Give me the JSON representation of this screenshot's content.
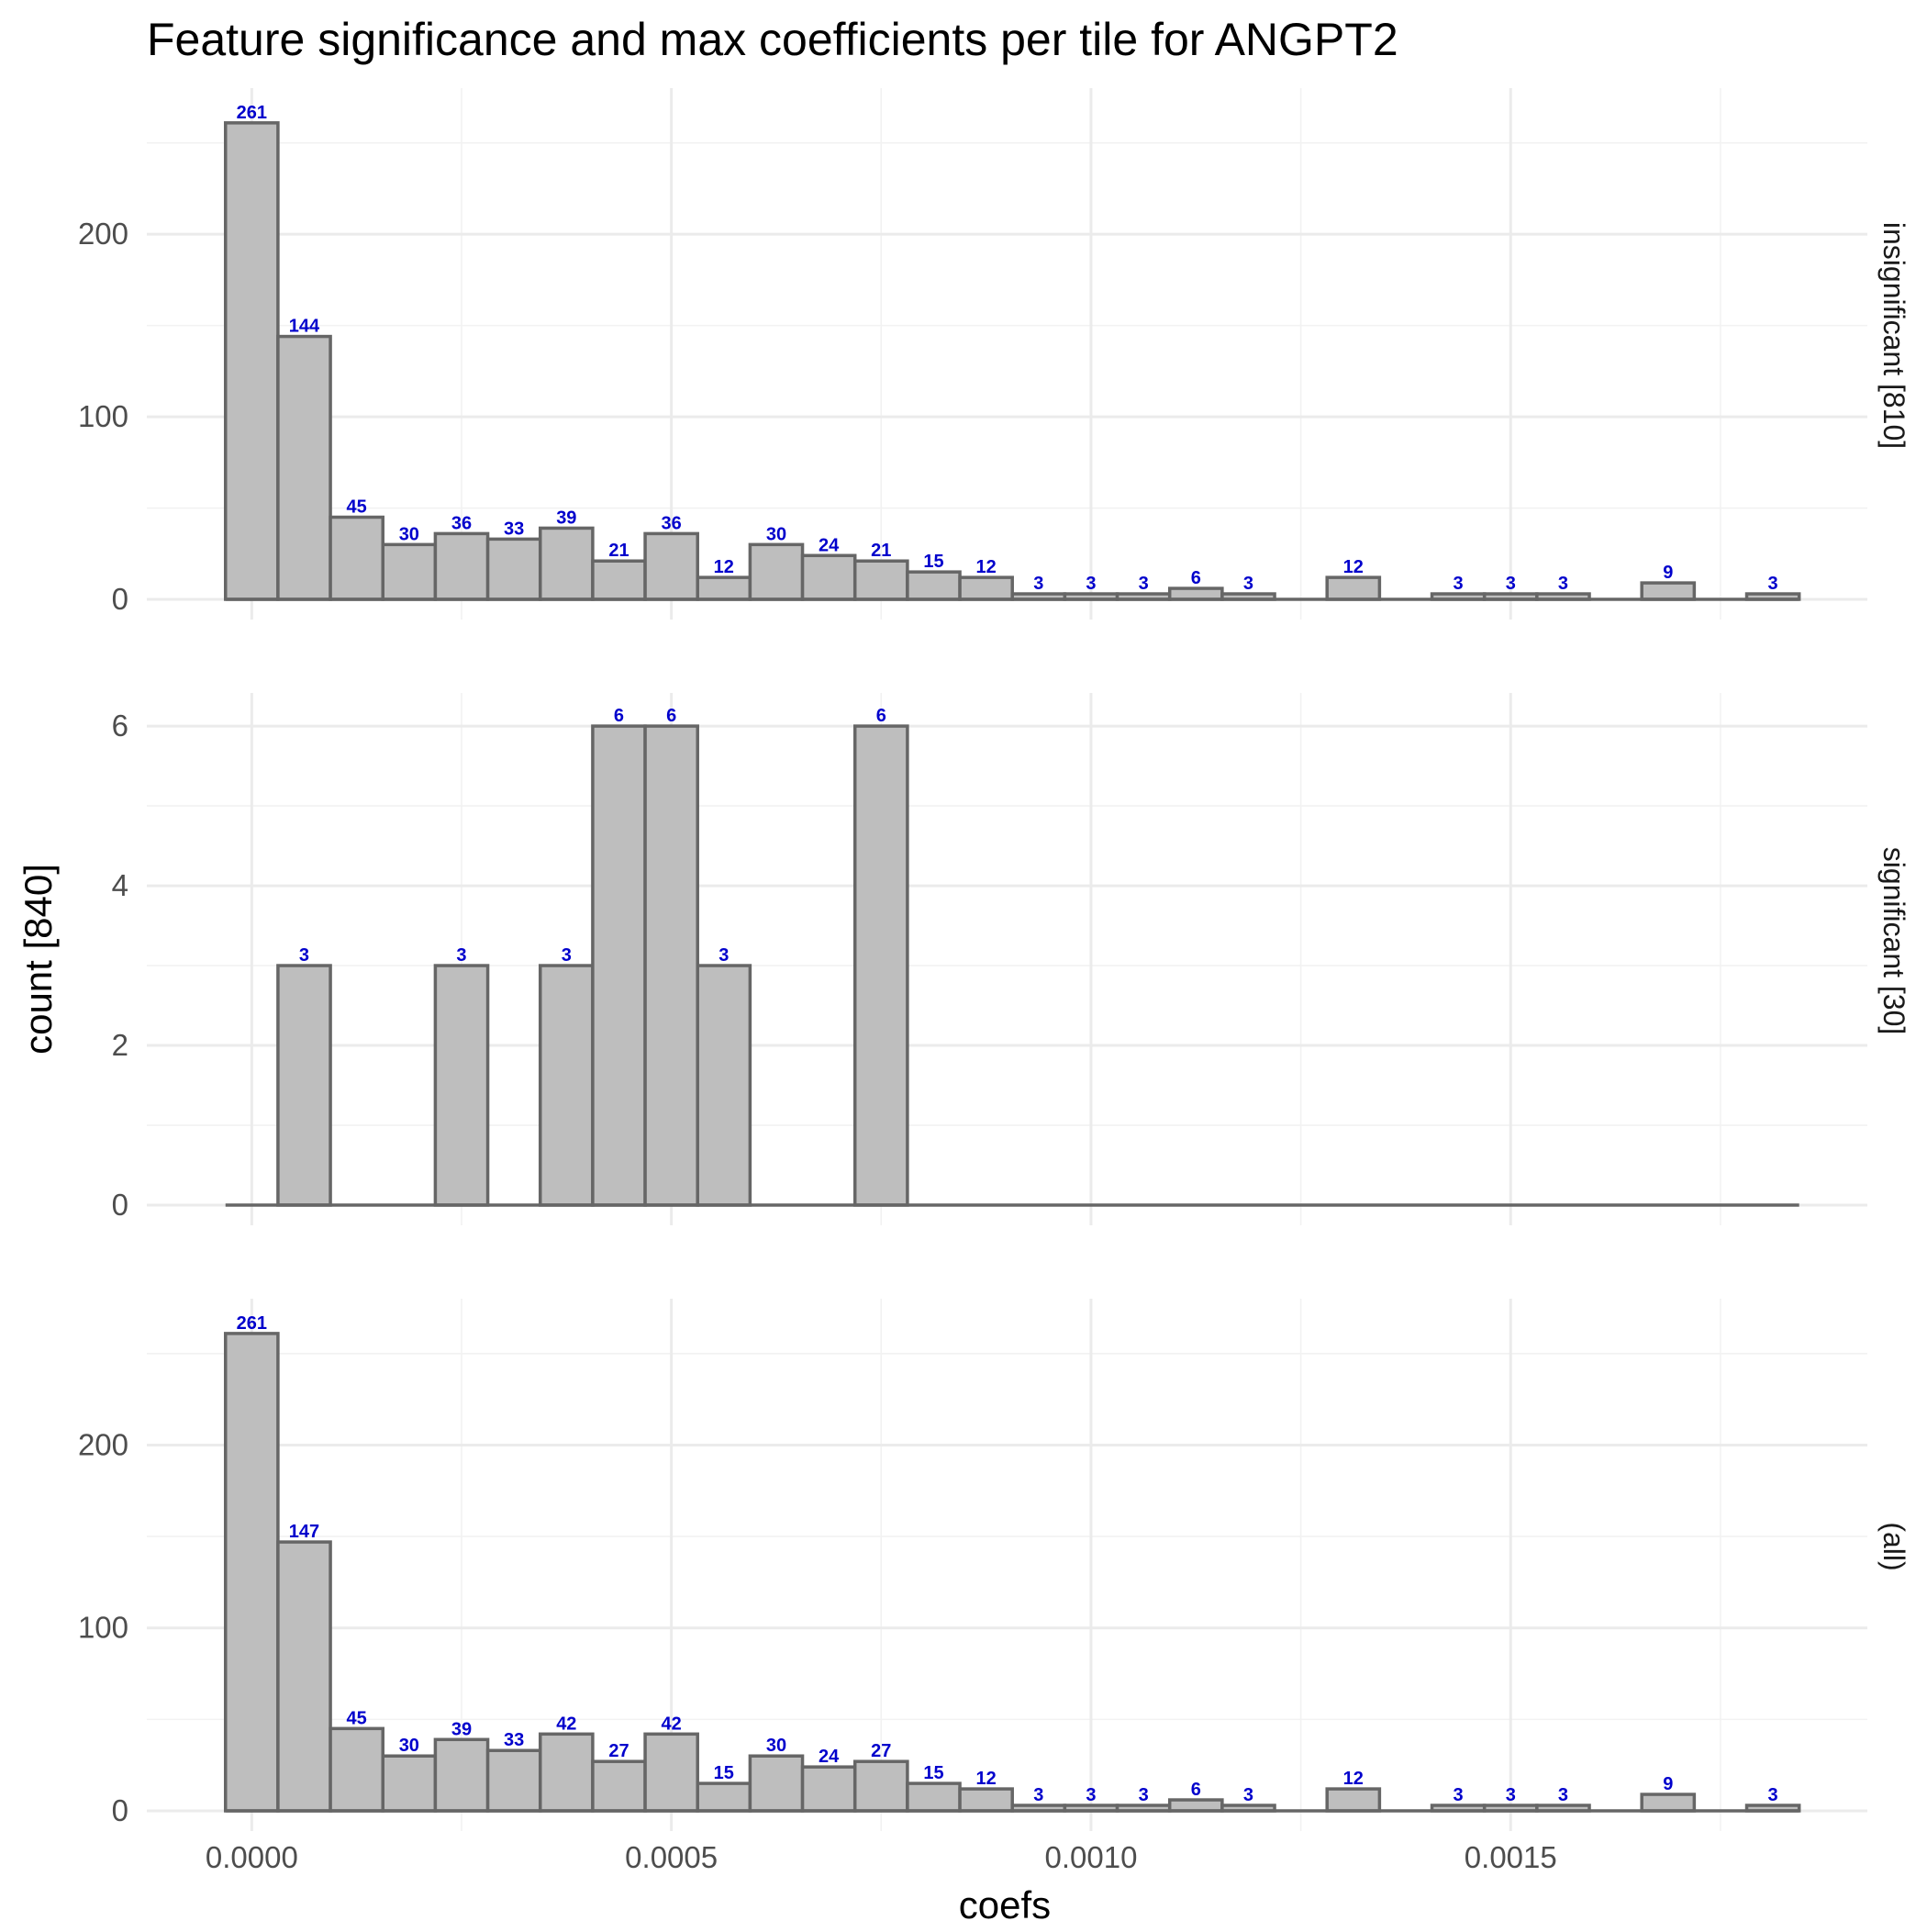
{
  "chart_data": {
    "type": "bar",
    "title": "Feature significance and max coefficients per tile for ANGPT2",
    "xlabel": "coefs",
    "ylabel": "count [840]",
    "xlim": [
      -0.000125,
      0.001925
    ],
    "x_ticks": [
      0.0,
      0.0005,
      0.001,
      0.0015
    ],
    "x_tick_labels": [
      "0.0000",
      "0.0005",
      "0.0010",
      "0.0015"
    ],
    "bin_width": 6.25e-05,
    "bin_centers": [
      0.0,
      6.25e-05,
      0.000125,
      0.0001875,
      0.00025,
      0.0003125,
      0.000375,
      0.0004375,
      0.0005,
      0.0005625,
      0.000625,
      0.0006875,
      0.00075,
      0.0008125,
      0.000875,
      0.0009375,
      0.001,
      0.0010625,
      0.001125,
      0.0011875,
      0.00125,
      0.0013125,
      0.001375,
      0.0014375,
      0.0015,
      0.0015625,
      0.001625,
      0.0016875,
      0.00175,
      0.0018125
    ],
    "grid": true,
    "facets": [
      {
        "label": "insignificant [810]",
        "ylim": [
          0,
          275
        ],
        "y_ticks": [
          0,
          100,
          200
        ],
        "y_tick_labels": [
          "0",
          "100",
          "200"
        ],
        "values": [
          261,
          144,
          45,
          30,
          36,
          33,
          39,
          21,
          36,
          12,
          30,
          24,
          21,
          15,
          12,
          3,
          3,
          3,
          6,
          3,
          0,
          12,
          0,
          3,
          3,
          3,
          0,
          9,
          0,
          3
        ]
      },
      {
        "label": "significant [30]",
        "ylim": [
          0,
          6.3
        ],
        "y_ticks": [
          0,
          2,
          4,
          6
        ],
        "y_tick_labels": [
          "0",
          "2",
          "4",
          "6"
        ],
        "values": [
          0,
          3,
          0,
          0,
          3,
          0,
          3,
          6,
          6,
          3,
          0,
          0,
          6,
          0,
          0,
          0,
          0,
          0,
          0,
          0,
          0,
          0,
          0,
          0,
          0,
          0,
          0,
          0,
          0,
          0
        ]
      },
      {
        "label": "(all)",
        "ylim": [
          0,
          275
        ],
        "y_ticks": [
          0,
          100,
          200
        ],
        "y_tick_labels": [
          "0",
          "100",
          "200"
        ],
        "values": [
          261,
          147,
          45,
          30,
          39,
          33,
          42,
          27,
          42,
          15,
          30,
          24,
          27,
          15,
          12,
          3,
          3,
          3,
          6,
          3,
          0,
          12,
          0,
          3,
          3,
          3,
          0,
          9,
          0,
          3
        ]
      }
    ]
  }
}
